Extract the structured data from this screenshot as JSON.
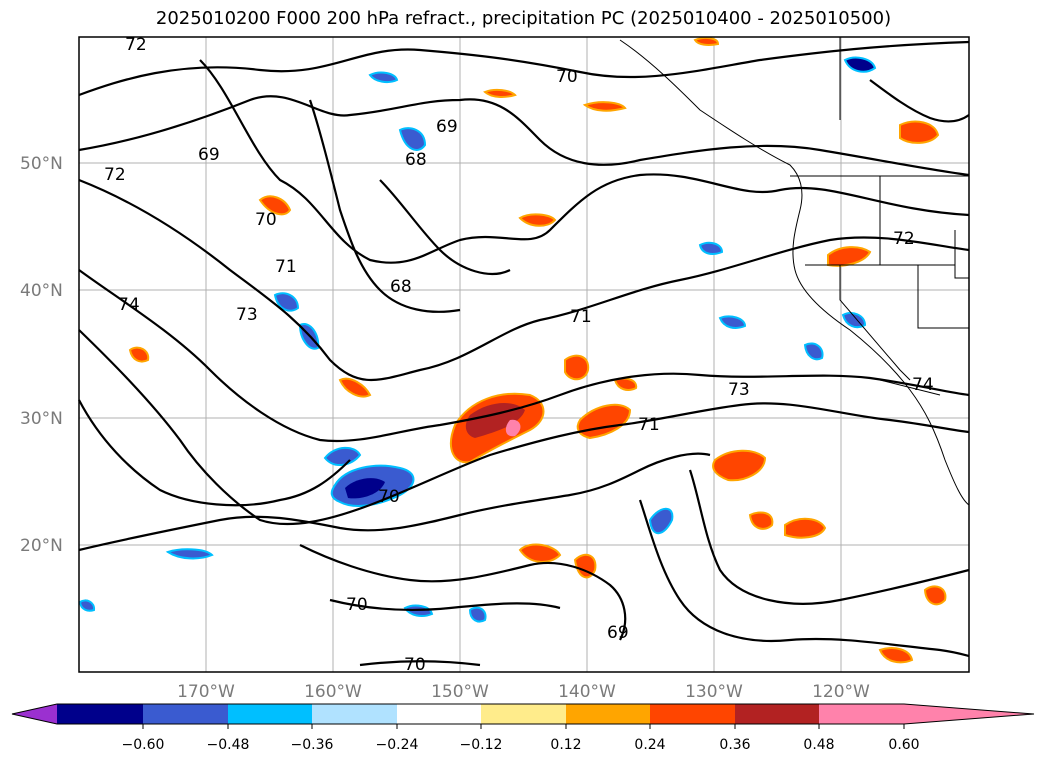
{
  "title": "2025010200 F000 200 hPa refract., precipitation PC (2025010400 - 2025010500)",
  "map": {
    "lat_labels": [
      "50°N",
      "40°N",
      "30°N",
      "20°N"
    ],
    "lon_labels": [
      "170°W",
      "160°W",
      "150°W",
      "140°W",
      "130°W",
      "120°W"
    ],
    "contour_labels": [
      "72",
      "70",
      "69",
      "68",
      "69",
      "72",
      "70",
      "71",
      "68",
      "74",
      "73",
      "71",
      "73",
      "71",
      "74",
      "72",
      "70",
      "70",
      "70",
      "69"
    ]
  },
  "colorbar": {
    "colors": [
      "#9b30d0",
      "#00008b",
      "#3a5bd0",
      "#00bfff",
      "#b0e2ff",
      "#ffffff",
      "#ffec8b",
      "#ffa500",
      "#ff4500",
      "#b22222",
      "#ff82ab"
    ],
    "tick_labels": [
      "−0.60",
      "−0.48",
      "−0.36",
      "−0.24",
      "−0.12",
      "0.12",
      "0.24",
      "0.36",
      "0.48",
      "0.60"
    ]
  }
}
